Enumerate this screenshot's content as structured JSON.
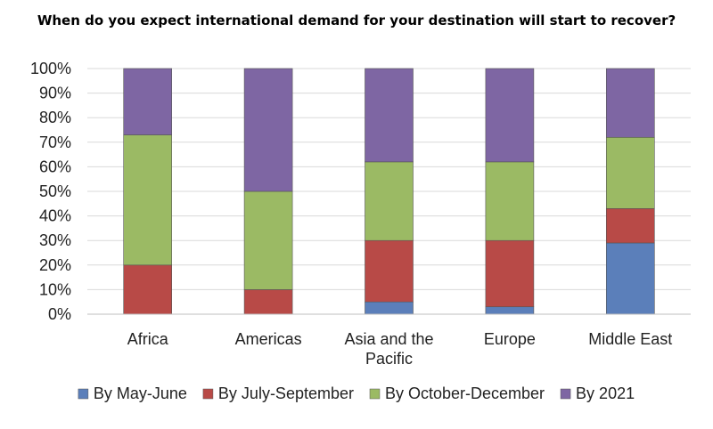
{
  "chart_data": {
    "type": "bar",
    "stacked": true,
    "title": "When do you expect international demand for your destination will start to recover?",
    "xlabel": "",
    "ylabel": "",
    "ylim": [
      0,
      100
    ],
    "yticks": [
      "0%",
      "10%",
      "20%",
      "30%",
      "40%",
      "50%",
      "60%",
      "70%",
      "80%",
      "90%",
      "100%"
    ],
    "categories": [
      [
        "Africa"
      ],
      [
        "Americas"
      ],
      [
        "Asia and the",
        "Pacific"
      ],
      [
        "Europe"
      ],
      [
        "Middle East"
      ]
    ],
    "series": [
      {
        "name": "By May-June",
        "color": "#5b7fba",
        "values": [
          0,
          0,
          5,
          3,
          29
        ]
      },
      {
        "name": "By July-September",
        "color": "#b84a47",
        "values": [
          20,
          10,
          25,
          27,
          14
        ]
      },
      {
        "name": "By October-December",
        "color": "#9bba64",
        "values": [
          53,
          40,
          32,
          32,
          29
        ]
      },
      {
        "name": "By 2021",
        "color": "#7e66a3",
        "values": [
          27,
          50,
          38,
          38,
          28
        ]
      }
    ],
    "grid": true,
    "legend_position": "bottom"
  }
}
